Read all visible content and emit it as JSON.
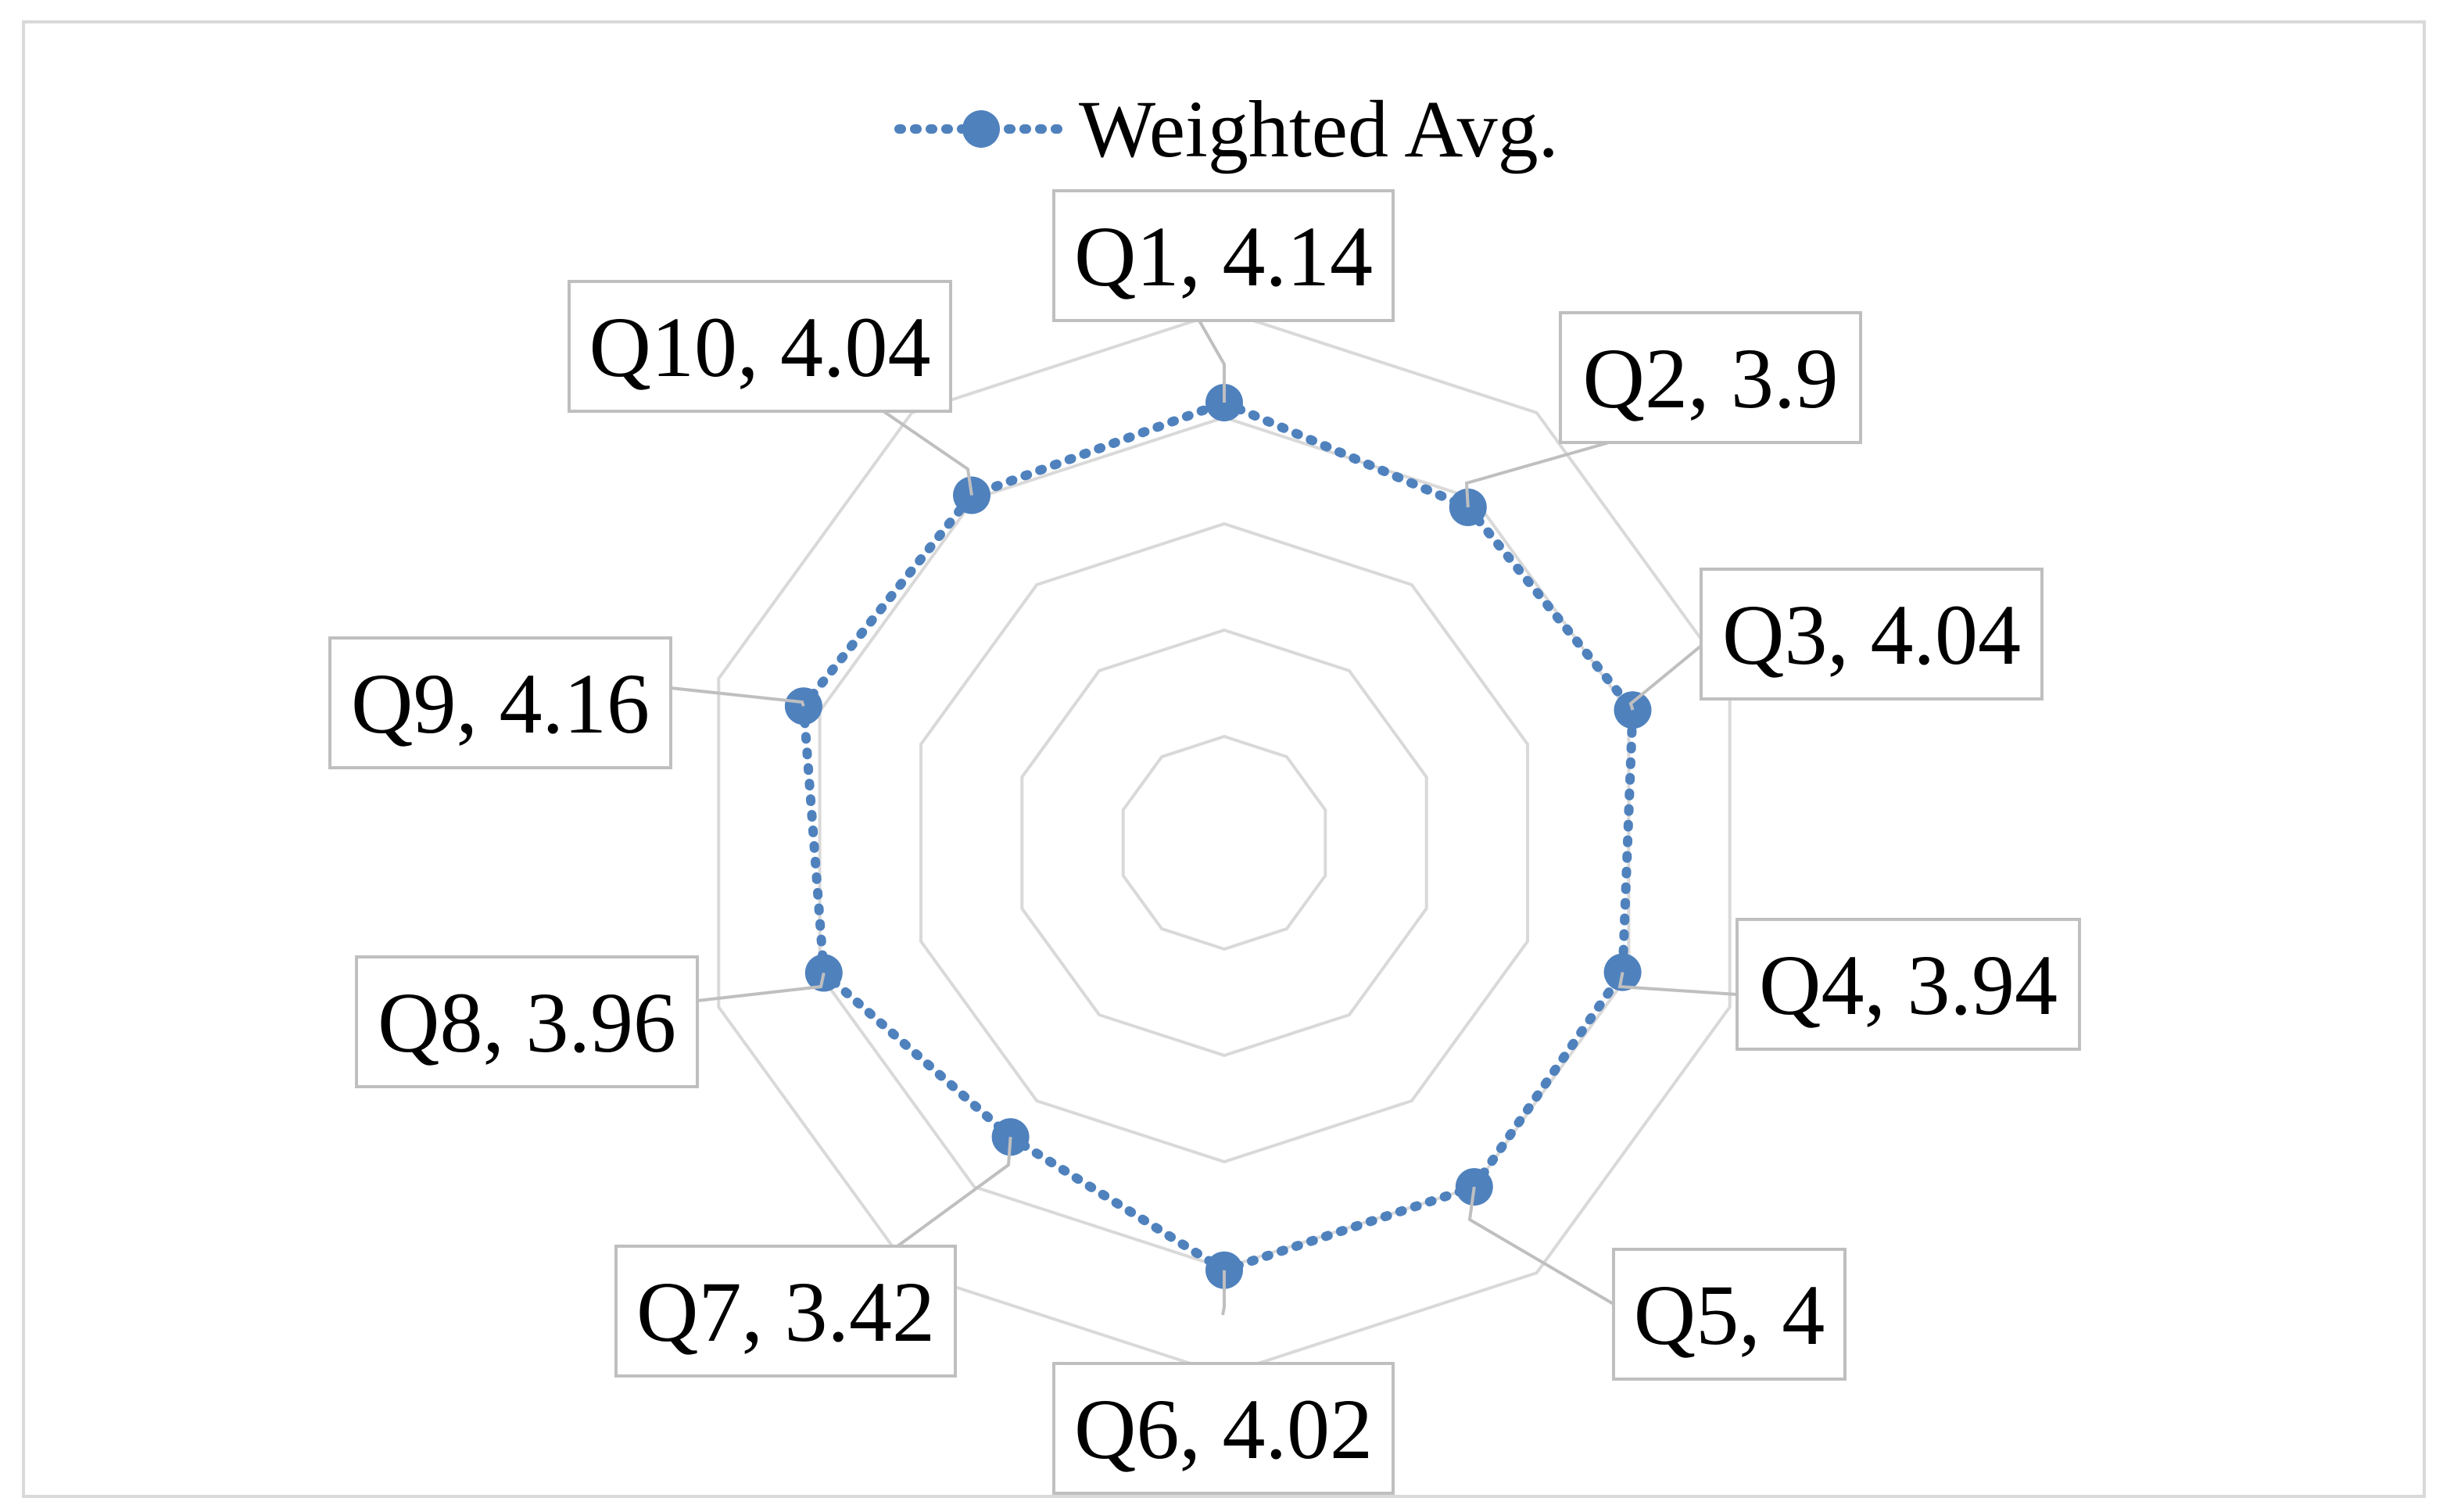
{
  "chart_data": {
    "type": "radar",
    "categories": [
      "Q1",
      "Q2",
      "Q3",
      "Q4",
      "Q5",
      "Q6",
      "Q7",
      "Q8",
      "Q9",
      "Q10"
    ],
    "series": [
      {
        "name": "Weighted Avg.",
        "values": [
          4.14,
          3.9,
          4.04,
          3.94,
          4,
          4.02,
          3.42,
          3.96,
          4.16,
          4.04
        ],
        "color": "#4f81bd",
        "line_style": "dotted",
        "marker": "circle"
      }
    ],
    "data_labels": [
      "Q1, 4.14",
      "Q2, 3.9",
      "Q3, 4.04",
      "Q4, 3.94",
      "Q5, 4",
      "Q6, 4.02",
      "Q7, 3.42",
      "Q8, 3.96",
      "Q9, 4.16",
      "Q10, 4.04"
    ],
    "rlim": [
      0,
      5
    ],
    "grid_rings": [
      1,
      2,
      3,
      4,
      5
    ],
    "grid": true,
    "legend_position": "top",
    "grid_color": "#d9d9d9",
    "label_border_color": "#bfbfbf"
  }
}
